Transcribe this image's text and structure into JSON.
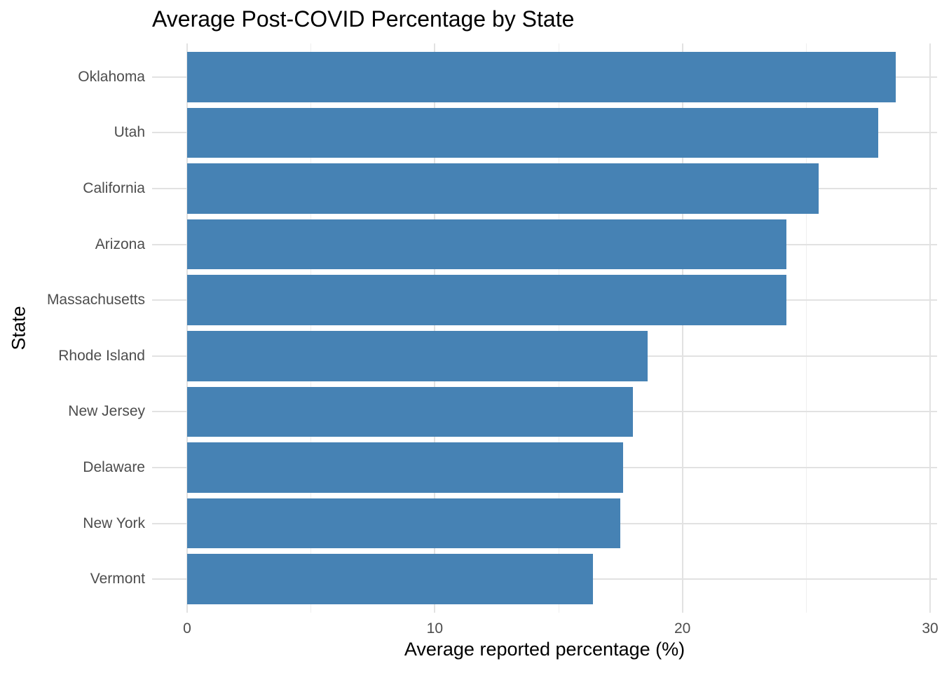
{
  "chart_data": {
    "type": "bar",
    "orientation": "horizontal",
    "title": "Average Post-COVID Percentage by State",
    "xlabel": "Average reported percentage (%)",
    "ylabel": "State",
    "categories": [
      "Oklahoma",
      "Utah",
      "California",
      "Arizona",
      "Massachusetts",
      "Rhode Island",
      "New Jersey",
      "Delaware",
      "New York",
      "Vermont"
    ],
    "values": [
      28.6,
      27.9,
      25.5,
      24.2,
      24.2,
      18.6,
      18.0,
      17.6,
      17.5,
      16.4
    ],
    "xlim": [
      0,
      30
    ],
    "x_ticks": [
      0,
      10,
      20,
      30
    ],
    "x_minor_ticks": [
      5,
      15,
      25
    ],
    "x_tick_labels": [
      "0",
      "10",
      "20",
      "30"
    ],
    "bar_color": "#4682B4",
    "grid": "on",
    "legend": "none",
    "background_color": "#FFFFFF",
    "grid_major_color": "#E2E2E2",
    "grid_minor_color": "#EFEFEF",
    "axis_text_color": "#4D4D4D",
    "title_color": "#000000"
  }
}
